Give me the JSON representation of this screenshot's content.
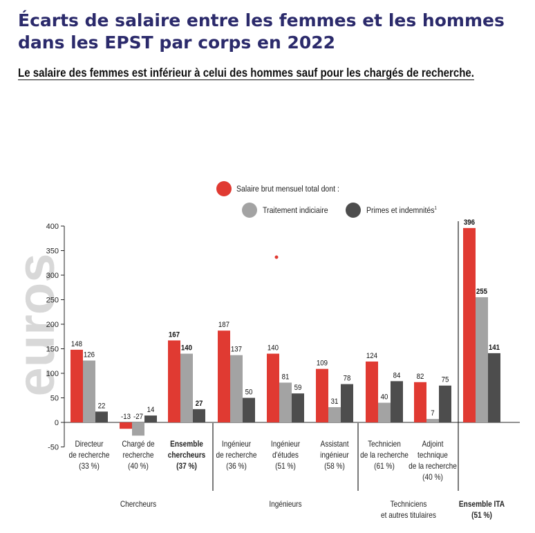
{
  "title": "Écarts de salaire entre les femmes et les hommes dans les EPST par corps en 2022",
  "subtitle": "Le salaire des femmes est inférieur à celui des hommes sauf pour les chargés de recherche.",
  "colors": {
    "salaire": "#e03a32",
    "traitement": "#a3a3a3",
    "primes": "#4d4d4d",
    "watermark": "#d8d8d8"
  },
  "chart_data": {
    "type": "bar",
    "ylabel": "euros",
    "ylim": [
      -50,
      400
    ],
    "yticks": [
      -50,
      0,
      50,
      100,
      150,
      200,
      250,
      300,
      350,
      400
    ],
    "legend": {
      "title": "Salaire brut mensuel total dont :",
      "items": [
        "Traitement indiciaire",
        "Primes et indemnités"
      ],
      "footnote": "1"
    },
    "categories": [
      {
        "lines": [
          "Directeur",
          "de recherche",
          "(33 %)"
        ],
        "bold": false,
        "values": [
          148,
          126,
          22
        ],
        "labels": [
          "148",
          "126",
          "22"
        ]
      },
      {
        "lines": [
          "Chargé de",
          "recherche",
          "(40 %)"
        ],
        "bold": false,
        "values": [
          -13,
          -27,
          14
        ],
        "labels": [
          "-13",
          "-27",
          "14"
        ]
      },
      {
        "lines": [
          "Ensemble",
          "chercheurs",
          "(37 %)"
        ],
        "bold": true,
        "values": [
          167,
          140,
          27
        ],
        "labels": [
          "167",
          "140",
          "27"
        ]
      },
      {
        "lines": [
          "Ingénieur",
          "de recherche",
          "(36 %)"
        ],
        "bold": false,
        "values": [
          187,
          137,
          50
        ],
        "labels": [
          "187",
          "137",
          "50"
        ]
      },
      {
        "lines": [
          "Ingénieur",
          "d'études",
          "(51 %)"
        ],
        "bold": false,
        "values": [
          140,
          81,
          59
        ],
        "labels": [
          "140",
          "81",
          "59"
        ]
      },
      {
        "lines": [
          "Assistant",
          "ingénieur",
          "(58 %)"
        ],
        "bold": false,
        "values": [
          109,
          31,
          78
        ],
        "labels": [
          "109",
          "31",
          "78"
        ]
      },
      {
        "lines": [
          "Technicien",
          "de la recherche",
          "(61 %)"
        ],
        "bold": false,
        "values": [
          124,
          40,
          84
        ],
        "labels": [
          "124",
          "40",
          "84"
        ]
      },
      {
        "lines": [
          "Adjoint",
          "technique",
          "de la recherche",
          "(40 %)"
        ],
        "bold": false,
        "values": [
          82,
          7,
          75
        ],
        "labels": [
          "82",
          "7",
          "75"
        ]
      },
      {
        "lines": [],
        "bold": true,
        "values": [
          396,
          255,
          141
        ],
        "labels": [
          "396",
          "255",
          "141"
        ]
      }
    ],
    "groups": [
      {
        "lines": [
          "Chercheurs"
        ],
        "bold": false
      },
      {
        "lines": [
          "Ingénieurs"
        ],
        "bold": false
      },
      {
        "lines": [
          "Techniciens",
          "et autres titulaires"
        ],
        "bold": false
      },
      {
        "lines": [
          "Ensemble ITA",
          "(51 %)"
        ],
        "bold": true
      }
    ]
  }
}
